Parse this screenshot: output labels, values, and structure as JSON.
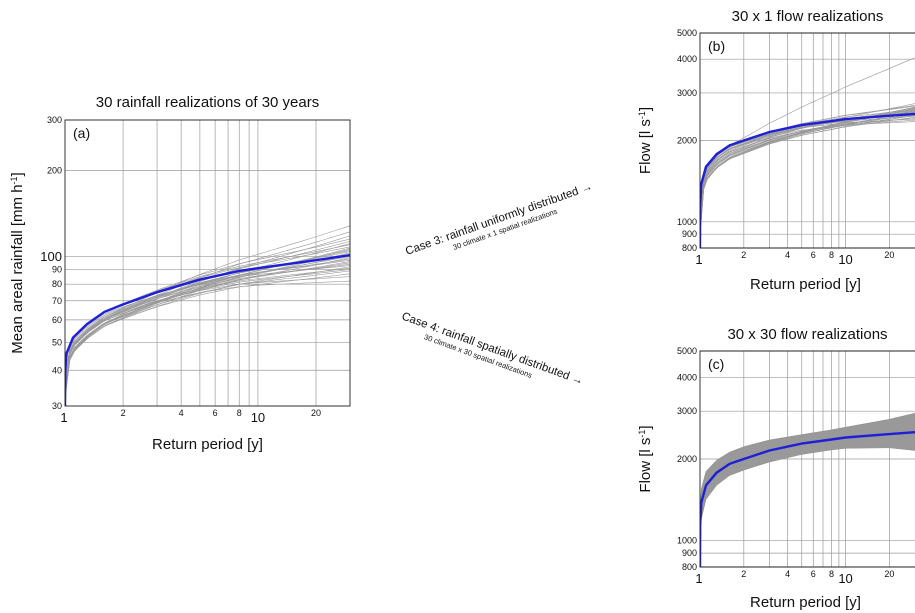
{
  "chart_data": [
    {
      "id": "a",
      "type": "line",
      "panel_label": "(a)",
      "title": "30 rainfall realizations of 30 years",
      "xlabel": "Return period [y]",
      "ylabel": "Mean areal rainfall [mm h",
      "ylabel_sup": "-1",
      "ylabel_end": "]",
      "x_scale": "log",
      "y_scale": "log",
      "xlim": [
        1,
        30
      ],
      "ylim": [
        30,
        300
      ],
      "x_ticks": [
        {
          "value": 1,
          "label": "1",
          "big": true
        },
        {
          "value": 2,
          "label": "2",
          "big": false
        },
        {
          "value": 4,
          "label": "4",
          "big": false
        },
        {
          "value": 6,
          "label": "6",
          "big": false
        },
        {
          "value": 8,
          "label": "8",
          "big": false
        },
        {
          "value": 10,
          "label": "10",
          "big": true
        },
        {
          "value": 20,
          "label": "20",
          "big": false
        }
      ],
      "x_grid": [
        2,
        3,
        4,
        5,
        6,
        7,
        8,
        9,
        10,
        20
      ],
      "y_ticks": [
        {
          "value": 30,
          "label": "30",
          "big": false
        },
        {
          "value": 40,
          "label": "40",
          "big": false
        },
        {
          "value": 50,
          "label": "50",
          "big": false
        },
        {
          "value": 60,
          "label": "60",
          "big": false
        },
        {
          "value": 70,
          "label": "70",
          "big": false
        },
        {
          "value": 80,
          "label": "80",
          "big": false
        },
        {
          "value": 90,
          "label": "90",
          "big": false
        },
        {
          "value": 100,
          "label": "100",
          "big": true
        },
        {
          "value": 200,
          "label": "200",
          "big": false
        },
        {
          "value": 300,
          "label": "300",
          "big": false
        }
      ],
      "series": [
        {
          "role": "mean",
          "color": "#1f1fd8",
          "points": [
            [
              1.0,
              30
            ],
            [
              1.003,
              40
            ],
            [
              1.02,
              46
            ],
            [
              1.1,
              52
            ],
            [
              1.3,
              58
            ],
            [
              1.6,
              64
            ],
            [
              2,
              68
            ],
            [
              3,
              75
            ],
            [
              5,
              83
            ],
            [
              8,
              89
            ],
            [
              10,
              91
            ],
            [
              20,
              97
            ],
            [
              30,
              101
            ]
          ]
        },
        {
          "role": "realizations",
          "color": "#9a9a9a",
          "count": 30,
          "final_values": [
            82,
            85,
            87,
            89,
            90,
            91,
            92,
            93,
            94,
            95,
            96,
            97,
            98,
            99,
            100,
            101,
            102,
            103,
            104,
            105,
            106,
            107,
            108,
            110,
            111,
            113,
            115,
            118,
            122,
            128
          ]
        }
      ]
    },
    {
      "id": "b",
      "type": "line",
      "panel_label": "(b)",
      "title": "30 x 1 flow realizations",
      "xlabel": "Return period [y]",
      "ylabel": "Flow [l s",
      "ylabel_sup": "-1",
      "ylabel_end": "]",
      "x_scale": "log",
      "y_scale": "log",
      "xlim": [
        1,
        30
      ],
      "ylim": [
        800,
        5000
      ],
      "x_ticks": [
        {
          "value": 1,
          "label": "1",
          "big": true
        },
        {
          "value": 2,
          "label": "2",
          "big": false
        },
        {
          "value": 4,
          "label": "4",
          "big": false
        },
        {
          "value": 6,
          "label": "6",
          "big": false
        },
        {
          "value": 8,
          "label": "8",
          "big": false
        },
        {
          "value": 10,
          "label": "10",
          "big": true
        },
        {
          "value": 20,
          "label": "20",
          "big": false
        }
      ],
      "x_grid": [
        2,
        3,
        4,
        5,
        6,
        7,
        8,
        9,
        10,
        20
      ],
      "y_ticks": [
        {
          "value": 800,
          "label": "800",
          "big": false
        },
        {
          "value": 900,
          "label": "900",
          "big": false
        },
        {
          "value": 1000,
          "label": "1000",
          "big": false
        },
        {
          "value": 2000,
          "label": "2000",
          "big": false
        },
        {
          "value": 3000,
          "label": "3000",
          "big": false
        },
        {
          "value": 4000,
          "label": "4000",
          "big": false
        },
        {
          "value": 5000,
          "label": "5000",
          "big": false
        }
      ],
      "series": [
        {
          "role": "mean",
          "color": "#1f1fd8",
          "points": [
            [
              1.0,
              800
            ],
            [
              1.003,
              1150
            ],
            [
              1.02,
              1380
            ],
            [
              1.1,
              1600
            ],
            [
              1.3,
              1780
            ],
            [
              1.6,
              1920
            ],
            [
              2,
              2000
            ],
            [
              3,
              2150
            ],
            [
              5,
              2280
            ],
            [
              8,
              2360
            ],
            [
              10,
              2400
            ],
            [
              20,
              2470
            ],
            [
              30,
              2510
            ]
          ]
        },
        {
          "role": "realizations",
          "color": "#9a9a9a",
          "count": 30,
          "final_values": [
            2350,
            2380,
            2400,
            2420,
            2440,
            2460,
            2470,
            2480,
            2490,
            2500,
            2510,
            2520,
            2530,
            2540,
            2550,
            2560,
            2570,
            2580,
            2590,
            2600,
            2610,
            2620,
            2630,
            2640,
            2650,
            2660,
            2680,
            2700,
            2740,
            4050
          ]
        }
      ]
    },
    {
      "id": "c",
      "type": "line",
      "panel_label": "(c)",
      "title": "30 x 30 flow realizations",
      "xlabel": "Return period [y]",
      "ylabel": "Flow [l s",
      "ylabel_sup": "-1",
      "ylabel_end": "]",
      "x_scale": "log",
      "y_scale": "log",
      "xlim": [
        1,
        30
      ],
      "ylim": [
        800,
        5000
      ],
      "x_ticks": [
        {
          "value": 1,
          "label": "1",
          "big": true
        },
        {
          "value": 2,
          "label": "2",
          "big": false
        },
        {
          "value": 4,
          "label": "4",
          "big": false
        },
        {
          "value": 6,
          "label": "6",
          "big": false
        },
        {
          "value": 8,
          "label": "8",
          "big": false
        },
        {
          "value": 10,
          "label": "10",
          "big": true
        },
        {
          "value": 20,
          "label": "20",
          "big": false
        }
      ],
      "x_grid": [
        2,
        3,
        4,
        5,
        6,
        7,
        8,
        9,
        10,
        20
      ],
      "y_ticks": [
        {
          "value": 800,
          "label": "800",
          "big": false
        },
        {
          "value": 900,
          "label": "900",
          "big": false
        },
        {
          "value": 1000,
          "label": "1000",
          "big": false
        },
        {
          "value": 2000,
          "label": "2000",
          "big": false
        },
        {
          "value": 3000,
          "label": "3000",
          "big": false
        },
        {
          "value": 4000,
          "label": "4000",
          "big": false
        },
        {
          "value": 5000,
          "label": "5000",
          "big": false
        }
      ],
      "series": [
        {
          "role": "mean",
          "color": "#1f1fd8",
          "points": [
            [
              1.0,
              800
            ],
            [
              1.003,
              1150
            ],
            [
              1.02,
              1380
            ],
            [
              1.1,
              1600
            ],
            [
              1.3,
              1780
            ],
            [
              1.6,
              1920
            ],
            [
              2,
              2000
            ],
            [
              3,
              2150
            ],
            [
              5,
              2280
            ],
            [
              8,
              2360
            ],
            [
              10,
              2400
            ],
            [
              20,
              2470
            ],
            [
              30,
              2510
            ]
          ]
        },
        {
          "role": "realization-band",
          "color": "#999999",
          "upper": [
            [
              1.003,
              1300
            ],
            [
              1.02,
              1550
            ],
            [
              1.1,
              1800
            ],
            [
              1.3,
              1980
            ],
            [
              1.6,
              2120
            ],
            [
              2,
              2220
            ],
            [
              3,
              2350
            ],
            [
              5,
              2460
            ],
            [
              8,
              2560
            ],
            [
              10,
              2620
            ],
            [
              20,
              2800
            ],
            [
              30,
              2950
            ]
          ],
          "lower": [
            [
              1.003,
              1000
            ],
            [
              1.02,
              1200
            ],
            [
              1.1,
              1420
            ],
            [
              1.3,
              1600
            ],
            [
              1.6,
              1740
            ],
            [
              2,
              1820
            ],
            [
              3,
              1950
            ],
            [
              5,
              2080
            ],
            [
              8,
              2160
            ],
            [
              10,
              2190
            ],
            [
              20,
              2200
            ],
            [
              30,
              2150
            ]
          ]
        }
      ]
    }
  ],
  "annotations": {
    "case3_main": "Case 3: rainfall uniformly distributed →",
    "case3_sub": "30 climate x 1 spatial realizations",
    "case4_main": "Case 4: rainfall spatially distributed →",
    "case4_sub": "30 climate x 30 spatial realizations"
  }
}
